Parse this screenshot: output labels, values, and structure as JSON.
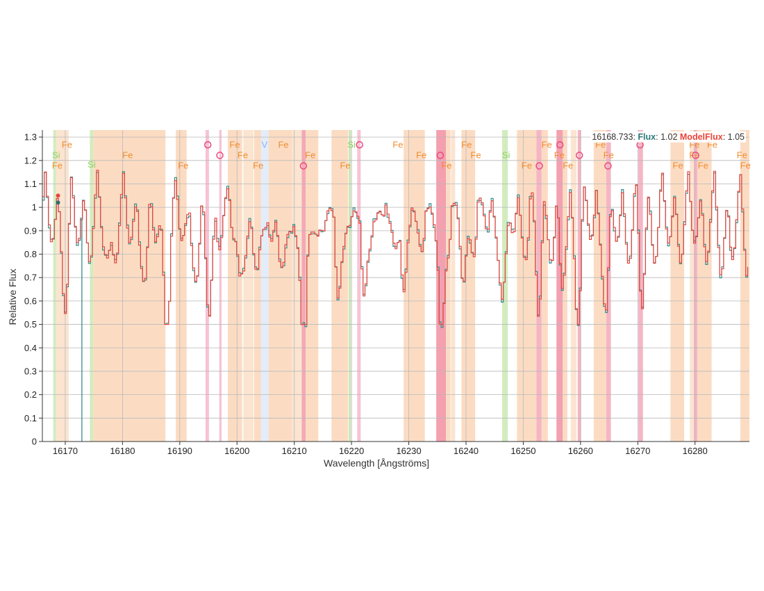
{
  "chart_data": {
    "type": "line",
    "xlabel": "Wavelength [Ångströms]",
    "ylabel": "Relative Flux",
    "xlim": [
      16166,
      16289.5
    ],
    "ylim": [
      0,
      1.33
    ],
    "x_ticks": [
      16170,
      16180,
      16190,
      16200,
      16210,
      16220,
      16230,
      16240,
      16250,
      16260,
      16270,
      16280
    ],
    "y_ticks": [
      0,
      0.1,
      0.2,
      0.3,
      0.4,
      0.5,
      0.6,
      0.7,
      0.8,
      0.9,
      1,
      1.1,
      1.2,
      1.3
    ],
    "y_tick_labels": [
      "0",
      "0.1",
      "0.2",
      "0.3",
      "0.4",
      "0.5",
      "0.6",
      "0.7",
      "0.8",
      "0.9",
      "1",
      "1.1",
      "1.2",
      "1.3"
    ],
    "grid": true,
    "hover_readout": {
      "wavelength": "16168.733",
      "flux_label": "Flux",
      "flux_value": "1.02",
      "model_label": "ModelFlux",
      "model_value": "1.05"
    },
    "series": [
      {
        "name": "Flux",
        "color": "#3a8a8a"
      },
      {
        "name": "ModelFlux",
        "color": "#e8453c"
      }
    ],
    "continuum": 1.05,
    "lines": [
      {
        "el": "Fe",
        "c": 16187.5,
        "d": 0.5
      },
      {
        "el": "Fe",
        "c": 16211.5,
        "d": 0.5
      },
      {
        "el": "O",
        "c": 16211.5,
        "d": 0.3
      },
      {
        "el": "Fe",
        "c": 16195.0,
        "d": 0.35
      },
      {
        "el": "Fe",
        "c": 16193.0,
        "d": 0.25
      },
      {
        "el": "Fe",
        "c": 16235.5,
        "d": 0.35
      },
      {
        "el": "O",
        "c": 16235.5,
        "d": 0.2
      },
      {
        "el": "Fe",
        "c": 16229.0,
        "d": 0.35
      },
      {
        "el": "Fe",
        "c": 16246.5,
        "d": 0.35
      },
      {
        "el": "Fe",
        "c": 16252.5,
        "d": 0.35
      },
      {
        "el": "O",
        "c": 16256.5,
        "d": 0.3
      },
      {
        "el": "Fe",
        "c": 16259.5,
        "d": 0.3
      },
      {
        "el": "O",
        "c": 16264.5,
        "d": 0.35
      },
      {
        "el": "Fe",
        "c": 16207.5,
        "d": 0.3
      },
      {
        "el": "Fe",
        "c": 16203.0,
        "d": 0.3
      },
      {
        "el": "Fe",
        "c": 16200.5,
        "d": 0.25
      },
      {
        "el": "Fe",
        "c": 16217.5,
        "d": 0.3
      },
      {
        "el": "Fe",
        "c": 16222.0,
        "d": 0.3
      },
      {
        "el": "Fe",
        "c": 16239.5,
        "d": 0.3
      },
      {
        "el": "Fe",
        "c": 16270.5,
        "d": 0.3
      },
      {
        "el": "Fe",
        "c": 16284.5,
        "d": 0.15
      },
      {
        "el": "Fe",
        "c": 16289.0,
        "d": 0.15
      },
      {
        "el": "Fe",
        "c": 16170.0,
        "d": 0.25
      },
      {
        "el": "Fe",
        "c": 16184.0,
        "d": 0.25
      },
      {
        "el": "Fe",
        "c": 16177.5,
        "d": 0.2
      }
    ],
    "outlier_drops": [
      {
        "x": 16172.9,
        "y": 0.0
      }
    ],
    "regions": [
      {
        "x0": 16167.9,
        "x1": 16168.4,
        "color": "#d3ecbf"
      },
      {
        "x0": 16168.4,
        "x1": 16170.6,
        "color": "#fbe4d0"
      },
      {
        "x0": 16174.3,
        "x1": 16174.9,
        "color": "#d3ecbf"
      },
      {
        "x0": 16174.9,
        "x1": 16187.5,
        "color": "#fbdcc3"
      },
      {
        "x0": 16189.3,
        "x1": 16191.2,
        "color": "#fbdcc3"
      },
      {
        "x0": 16194.5,
        "x1": 16195.1,
        "color": "#f7c3d3"
      },
      {
        "x0": 16196.9,
        "x1": 16197.3,
        "color": "#f7c3d3"
      },
      {
        "x0": 16198.4,
        "x1": 16200.9,
        "color": "#fbdcc3"
      },
      {
        "x0": 16201.1,
        "x1": 16202.9,
        "color": "#fbe4d0"
      },
      {
        "x0": 16203.0,
        "x1": 16204.2,
        "color": "#fbdcc3"
      },
      {
        "x0": 16204.2,
        "x1": 16205.5,
        "color": "#e3edfa"
      },
      {
        "x0": 16205.5,
        "x1": 16209.6,
        "color": "#fbdcc3"
      },
      {
        "x0": 16209.6,
        "x1": 16211.3,
        "color": "#fbe4d0"
      },
      {
        "x0": 16211.3,
        "x1": 16212.0,
        "color": "#f5a8b6"
      },
      {
        "x0": 16212.0,
        "x1": 16214.2,
        "color": "#fbdcc3"
      },
      {
        "x0": 16216.5,
        "x1": 16219.4,
        "color": "#fbdcc3"
      },
      {
        "x0": 16219.5,
        "x1": 16219.9,
        "color": "#cde8b6"
      },
      {
        "x0": 16221.0,
        "x1": 16221.6,
        "color": "#f7c3d3"
      },
      {
        "x0": 16229.1,
        "x1": 16232.8,
        "color": "#fbdcc3"
      },
      {
        "x0": 16234.8,
        "x1": 16236.5,
        "color": "#f3a0b0"
      },
      {
        "x0": 16236.5,
        "x1": 16237.3,
        "color": "#fbdcc3"
      },
      {
        "x0": 16237.4,
        "x1": 16238.1,
        "color": "#fbe4d0"
      },
      {
        "x0": 16239.2,
        "x1": 16241.6,
        "color": "#fbdcc3"
      },
      {
        "x0": 16246.3,
        "x1": 16247.3,
        "color": "#d3ecbf"
      },
      {
        "x0": 16248.9,
        "x1": 16252.3,
        "color": "#fbdcc3"
      },
      {
        "x0": 16252.3,
        "x1": 16253.2,
        "color": "#f5b5c4"
      },
      {
        "x0": 16253.2,
        "x1": 16254.3,
        "color": "#fbdcc3"
      },
      {
        "x0": 16255.8,
        "x1": 16256.9,
        "color": "#f3a0b0"
      },
      {
        "x0": 16256.9,
        "x1": 16257.7,
        "color": "#fbdcc3"
      },
      {
        "x0": 16258.3,
        "x1": 16259.3,
        "color": "#fbe4d0"
      },
      {
        "x0": 16259.5,
        "x1": 16260.1,
        "color": "#f5b5c4"
      },
      {
        "x0": 16262.3,
        "x1": 16264.5,
        "color": "#fbdcc3"
      },
      {
        "x0": 16264.5,
        "x1": 16265.3,
        "color": "#f5b5c4"
      },
      {
        "x0": 16270.1,
        "x1": 16270.9,
        "color": "#f5b5c4"
      },
      {
        "x0": 16275.7,
        "x1": 16278.1,
        "color": "#fbdcc3"
      },
      {
        "x0": 16279.1,
        "x1": 16279.8,
        "color": "#fbe4d0"
      },
      {
        "x0": 16279.8,
        "x1": 16280.4,
        "color": "#f5b5c4"
      },
      {
        "x0": 16280.4,
        "x1": 16282.9,
        "color": "#fbdcc3"
      },
      {
        "x0": 16287.9,
        "x1": 16289.5,
        "color": "#fbdcc3"
      }
    ],
    "annotations": [
      {
        "label": "Fe",
        "x": 16170.3,
        "y": 1.255,
        "color": "#f08c2e"
      },
      {
        "label": "Si",
        "x": 16168.4,
        "y": 1.21,
        "color": "#8bcf5f"
      },
      {
        "label": "Fe",
        "x": 16168.6,
        "y": 1.165,
        "color": "#f08c2e"
      },
      {
        "label": "Si",
        "x": 16174.6,
        "y": 1.17,
        "color": "#8bcf5f"
      },
      {
        "label": "Fe",
        "x": 16180.9,
        "y": 1.21,
        "color": "#f08c2e"
      },
      {
        "label": "Fe",
        "x": 16190.6,
        "y": 1.165,
        "color": "#f08c2e"
      },
      {
        "label": "O",
        "x": 16194.9,
        "y": 1.255,
        "color": "#e8497e"
      },
      {
        "label": "O",
        "x": 16197.0,
        "y": 1.21,
        "color": "#e8497e"
      },
      {
        "label": "Fe",
        "x": 16199.6,
        "y": 1.255,
        "color": "#f08c2e"
      },
      {
        "label": "Fe",
        "x": 16201.0,
        "y": 1.21,
        "color": "#f08c2e"
      },
      {
        "label": "Fe",
        "x": 16203.7,
        "y": 1.165,
        "color": "#f08c2e"
      },
      {
        "label": "V",
        "x": 16204.8,
        "y": 1.255,
        "color": "#8ab4f0"
      },
      {
        "label": "Fe",
        "x": 16208.1,
        "y": 1.255,
        "color": "#f08c2e"
      },
      {
        "label": "Fe",
        "x": 16212.8,
        "y": 1.21,
        "color": "#f08c2e"
      },
      {
        "label": "O",
        "x": 16211.6,
        "y": 1.165,
        "color": "#e8497e"
      },
      {
        "label": "Fe",
        "x": 16218.9,
        "y": 1.165,
        "color": "#f08c2e"
      },
      {
        "label": "Si",
        "x": 16220.0,
        "y": 1.255,
        "color": "#8bcf5f"
      },
      {
        "label": "O",
        "x": 16221.4,
        "y": 1.255,
        "color": "#e8497e"
      },
      {
        "label": "Fe",
        "x": 16228.1,
        "y": 1.255,
        "color": "#f08c2e"
      },
      {
        "label": "Fe",
        "x": 16232.2,
        "y": 1.21,
        "color": "#f08c2e"
      },
      {
        "label": "O",
        "x": 16235.5,
        "y": 1.21,
        "color": "#e8497e"
      },
      {
        "label": "Fe",
        "x": 16236.6,
        "y": 1.165,
        "color": "#f08c2e"
      },
      {
        "label": "Fe",
        "x": 16240.1,
        "y": 1.255,
        "color": "#f08c2e"
      },
      {
        "label": "Fe",
        "x": 16241.7,
        "y": 1.21,
        "color": "#f08c2e"
      },
      {
        "label": "Si",
        "x": 16247.0,
        "y": 1.21,
        "color": "#8bcf5f"
      },
      {
        "label": "Fe",
        "x": 16250.6,
        "y": 1.165,
        "color": "#f08c2e"
      },
      {
        "label": "Fe",
        "x": 16254.1,
        "y": 1.255,
        "color": "#f08c2e"
      },
      {
        "label": "O",
        "x": 16252.8,
        "y": 1.165,
        "color": "#e8497e"
      },
      {
        "label": "O",
        "x": 16256.4,
        "y": 1.255,
        "color": "#e8497e"
      },
      {
        "label": "Fe",
        "x": 16256.3,
        "y": 1.21,
        "color": "#f08c2e"
      },
      {
        "label": "Fe",
        "x": 16257.8,
        "y": 1.165,
        "color": "#f08c2e"
      },
      {
        "label": "O",
        "x": 16259.8,
        "y": 1.21,
        "color": "#e8497e"
      },
      {
        "label": "Fe",
        "x": 16263.5,
        "y": 1.255,
        "color": "#f08c2e"
      },
      {
        "label": "Fe",
        "x": 16264.9,
        "y": 1.21,
        "color": "#f08c2e"
      },
      {
        "label": "O",
        "x": 16264.8,
        "y": 1.165,
        "color": "#e8497e"
      },
      {
        "label": "O",
        "x": 16270.4,
        "y": 1.255,
        "color": "#e8497e"
      },
      {
        "label": "Fe",
        "x": 16277.0,
        "y": 1.165,
        "color": "#f08c2e"
      },
      {
        "label": "Fe",
        "x": 16279.9,
        "y": 1.255,
        "color": "#f08c2e"
      },
      {
        "label": "Fe",
        "x": 16279.9,
        "y": 1.21,
        "color": "#f08c2e"
      },
      {
        "label": "O",
        "x": 16280.1,
        "y": 1.21,
        "color": "#e8497e"
      },
      {
        "label": "Fe",
        "x": 16281.4,
        "y": 1.165,
        "color": "#f08c2e"
      },
      {
        "label": "Fe",
        "x": 16283.0,
        "y": 1.255,
        "color": "#f08c2e"
      },
      {
        "label": "Fe",
        "x": 16288.2,
        "y": 1.21,
        "color": "#f08c2e"
      },
      {
        "label": "Fe",
        "x": 16288.8,
        "y": 1.165,
        "color": "#f08c2e"
      }
    ],
    "marker_points": [
      {
        "x": 16168.733,
        "y": 1.05,
        "color": "#e8453c"
      },
      {
        "x": 16168.733,
        "y": 1.02,
        "color": "#2e6e6e"
      }
    ]
  }
}
